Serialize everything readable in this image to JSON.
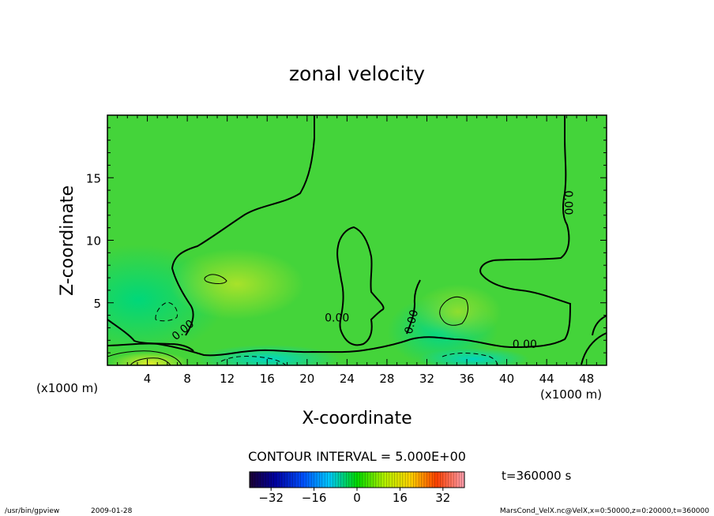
{
  "chart_data": {
    "type": "contour",
    "title": "zonal velocity",
    "xlabel": "X-coordinate",
    "ylabel": "Z-coordinate",
    "x_unit_left": "(x1000 m)",
    "x_unit_right": "(x1000 m)",
    "xlim": [
      0,
      50
    ],
    "ylim": [
      0,
      20
    ],
    "x_ticks": [
      4,
      8,
      12,
      16,
      20,
      24,
      28,
      32,
      36,
      40,
      44,
      48
    ],
    "y_ticks": [
      5,
      10,
      15
    ],
    "contour_interval_text": "CONTOUR INTERVAL = 5.000E+00",
    "time_text": "t=360000 s",
    "colorbar": {
      "range": [
        -40,
        40
      ],
      "ticks": [
        -32,
        -16,
        0,
        16,
        32
      ]
    },
    "contour_labels": [
      {
        "text": "0.00",
        "x": 7.8,
        "y": 2.6,
        "rotate": -40
      },
      {
        "text": "0.00",
        "x": 23.0,
        "y": 3.5,
        "rotate": 0
      },
      {
        "text": "0.00",
        "x": 30.8,
        "y": 3.4,
        "rotate": -75
      },
      {
        "text": "0.00",
        "x": 41.8,
        "y": 1.4,
        "rotate": 0
      },
      {
        "text": "0.00",
        "x": 45.8,
        "y": 13.0,
        "rotate": 90
      }
    ]
  },
  "footer": {
    "program": "/usr/bin/gpview",
    "date": "2009-01-28",
    "source": "MarsCond_VelX.nc@VelX,x=0:50000,z=0:20000,t=360000"
  }
}
